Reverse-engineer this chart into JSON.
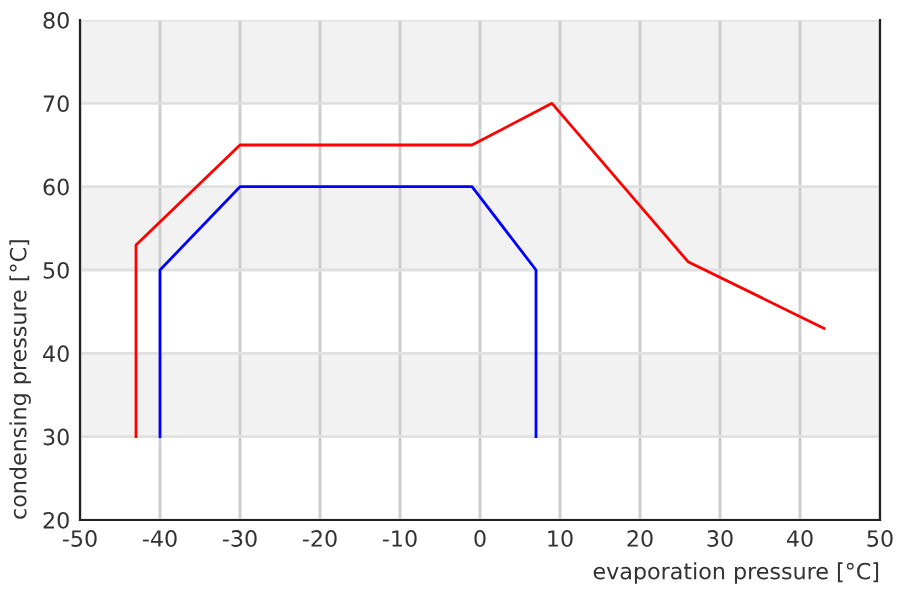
{
  "chart_data": {
    "type": "line",
    "xlabel": "evaporation pressure [°C]",
    "ylabel": "condensing pressure [°C]",
    "xlim": [
      -50,
      50
    ],
    "xticks": [
      -50,
      -40,
      -30,
      -20,
      -10,
      0,
      10,
      20,
      30,
      40,
      50
    ],
    "ylim": [
      20,
      80
    ],
    "yticks": [
      20,
      30,
      40,
      50,
      60,
      70,
      80
    ],
    "grid": true,
    "marker": "none",
    "line_style": "solid",
    "bands": [
      {
        "axis": "y",
        "from": 70,
        "to": 80,
        "color": "#f2f2f2"
      },
      {
        "axis": "y",
        "from": 50,
        "to": 60,
        "color": "#f2f2f2"
      },
      {
        "axis": "y",
        "from": 30,
        "to": 40,
        "color": "#f2f2f2"
      }
    ],
    "series": [
      {
        "color": "#ff0000",
        "x": [
          -43,
          -43,
          -30,
          -1,
          9,
          26,
          43
        ],
        "values": [
          30,
          53,
          65,
          65,
          70,
          51,
          43
        ]
      },
      {
        "color": "#0000ff",
        "x": [
          -40,
          -40,
          -30,
          -1,
          7,
          7
        ],
        "values": [
          30,
          50,
          60,
          60,
          50,
          30
        ]
      }
    ]
  }
}
